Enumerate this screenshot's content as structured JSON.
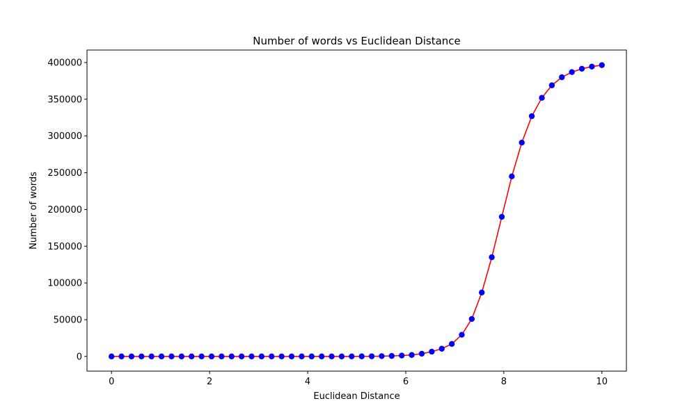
{
  "chart_data": {
    "type": "line",
    "title": "Number of words vs Euclidean Distance",
    "xlabel": "Euclidean Distance",
    "ylabel": "Number of words",
    "xlim": [
      -0.5,
      10.5
    ],
    "ylim": [
      -20000,
      417000
    ],
    "xticks": [
      0,
      2,
      4,
      6,
      8,
      10
    ],
    "xtick_labels": [
      "0",
      "2",
      "4",
      "6",
      "8",
      "10"
    ],
    "yticks": [
      0,
      50000,
      100000,
      150000,
      200000,
      250000,
      300000,
      350000,
      400000
    ],
    "ytick_labels": [
      "0",
      "50000",
      "100000",
      "150000",
      "200000",
      "250000",
      "300000",
      "350000",
      "400000"
    ],
    "grid": false,
    "legend": false,
    "series": [
      {
        "style": "line+markers",
        "line_color": "#ff0000",
        "marker_color": "#0000ff",
        "x": [
          0,
          0.204,
          0.408,
          0.612,
          0.816,
          1.02,
          1.224,
          1.429,
          1.633,
          1.837,
          2.041,
          2.245,
          2.449,
          2.653,
          2.857,
          3.061,
          3.265,
          3.469,
          3.673,
          3.878,
          4.082,
          4.286,
          4.49,
          4.694,
          4.898,
          5.102,
          5.306,
          5.51,
          5.714,
          5.918,
          6.122,
          6.327,
          6.531,
          6.735,
          6.939,
          7.143,
          7.347,
          7.551,
          7.755,
          7.959,
          8.163,
          8.367,
          8.571,
          8.776,
          8.98,
          9.184,
          9.388,
          9.592,
          9.796,
          10.0
        ],
        "y": [
          0,
          0,
          0,
          0,
          0,
          0,
          0,
          0,
          0,
          0,
          0,
          0,
          0,
          0,
          0,
          0,
          0,
          0,
          0,
          0,
          0,
          0,
          0,
          0,
          50,
          100,
          200,
          400,
          700,
          1200,
          2000,
          3700,
          6500,
          10500,
          17000,
          29500,
          51000,
          87000,
          135000,
          190000,
          245000,
          291000,
          327000,
          352000,
          369000,
          380000,
          387000,
          391500,
          394500,
          396500
        ]
      }
    ]
  }
}
